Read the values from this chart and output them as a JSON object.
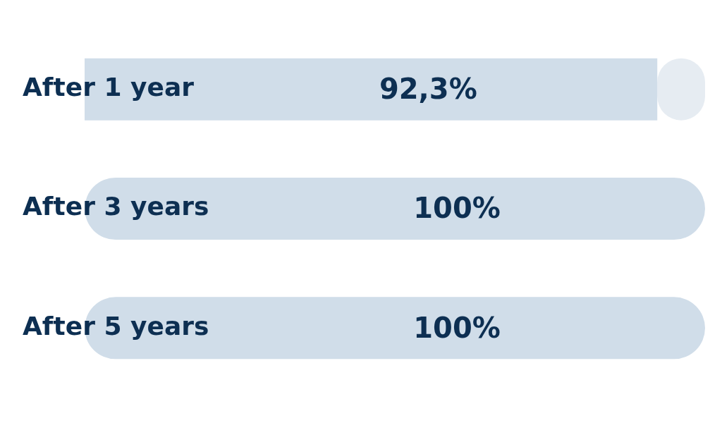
{
  "chart_data": {
    "type": "bar",
    "orientation": "horizontal",
    "stacked": true,
    "categories": [
      "After 1 year",
      "After 3 years",
      "After 5 years"
    ],
    "series": [
      {
        "color": "#d0dde9",
        "values": [
          92.3,
          100,
          100
        ],
        "value_labels": [
          "92,3%",
          "100%",
          "100%"
        ]
      },
      {
        "color": "#e6ecf2",
        "values": [
          7.7,
          0,
          0
        ]
      }
    ],
    "xlim": [
      0,
      100
    ],
    "tick_labels": "y",
    "legend": false
  }
}
